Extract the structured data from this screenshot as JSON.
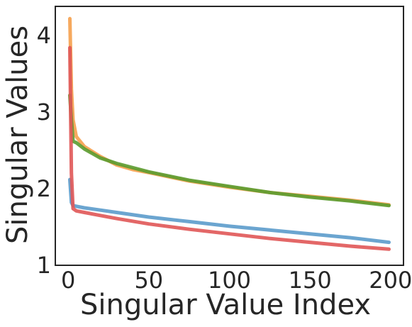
{
  "chart_data": {
    "type": "line",
    "title": "",
    "xlabel": "Singular Value Index",
    "ylabel": "Singular Values",
    "xlim": [
      -8,
      208
    ],
    "ylim": [
      1.0,
      4.38
    ],
    "xticks": [
      0,
      50,
      100,
      150,
      200
    ],
    "xtick_labels": [
      "0",
      "50",
      "100",
      "150",
      "200"
    ],
    "yticks": [
      1,
      2,
      3,
      4
    ],
    "ytick_labels": [
      "1",
      "2",
      "3",
      "4"
    ],
    "grid": false,
    "legend": false,
    "series": [
      {
        "color": "#5b9bcb",
        "x": [
          1,
          2,
          3,
          5,
          10,
          20,
          30,
          50,
          75,
          100,
          125,
          150,
          175,
          199
        ],
        "y": [
          2.12,
          1.82,
          1.78,
          1.77,
          1.75,
          1.72,
          1.69,
          1.63,
          1.57,
          1.51,
          1.46,
          1.41,
          1.36,
          1.3
        ]
      },
      {
        "color": "#f5a04d",
        "x": [
          1,
          2,
          3,
          5,
          10,
          20,
          30,
          40,
          50,
          75,
          100,
          125,
          150,
          175,
          199
        ],
        "y": [
          4.22,
          3.3,
          2.9,
          2.68,
          2.55,
          2.42,
          2.31,
          2.25,
          2.21,
          2.1,
          2.02,
          1.95,
          1.9,
          1.85,
          1.79
        ]
      },
      {
        "color": "#5a9b2f",
        "x": [
          1,
          2,
          3,
          5,
          10,
          20,
          30,
          50,
          75,
          100,
          125,
          150,
          175,
          199
        ],
        "y": [
          3.22,
          2.9,
          2.62,
          2.6,
          2.52,
          2.4,
          2.33,
          2.22,
          2.11,
          2.03,
          1.95,
          1.89,
          1.84,
          1.78
        ]
      },
      {
        "color": "#e05656",
        "x": [
          1,
          2,
          3,
          5,
          10,
          20,
          30,
          50,
          75,
          100,
          125,
          150,
          175,
          199
        ],
        "y": [
          3.84,
          2.2,
          1.74,
          1.71,
          1.69,
          1.65,
          1.61,
          1.54,
          1.47,
          1.41,
          1.35,
          1.3,
          1.25,
          1.21
        ]
      }
    ]
  }
}
